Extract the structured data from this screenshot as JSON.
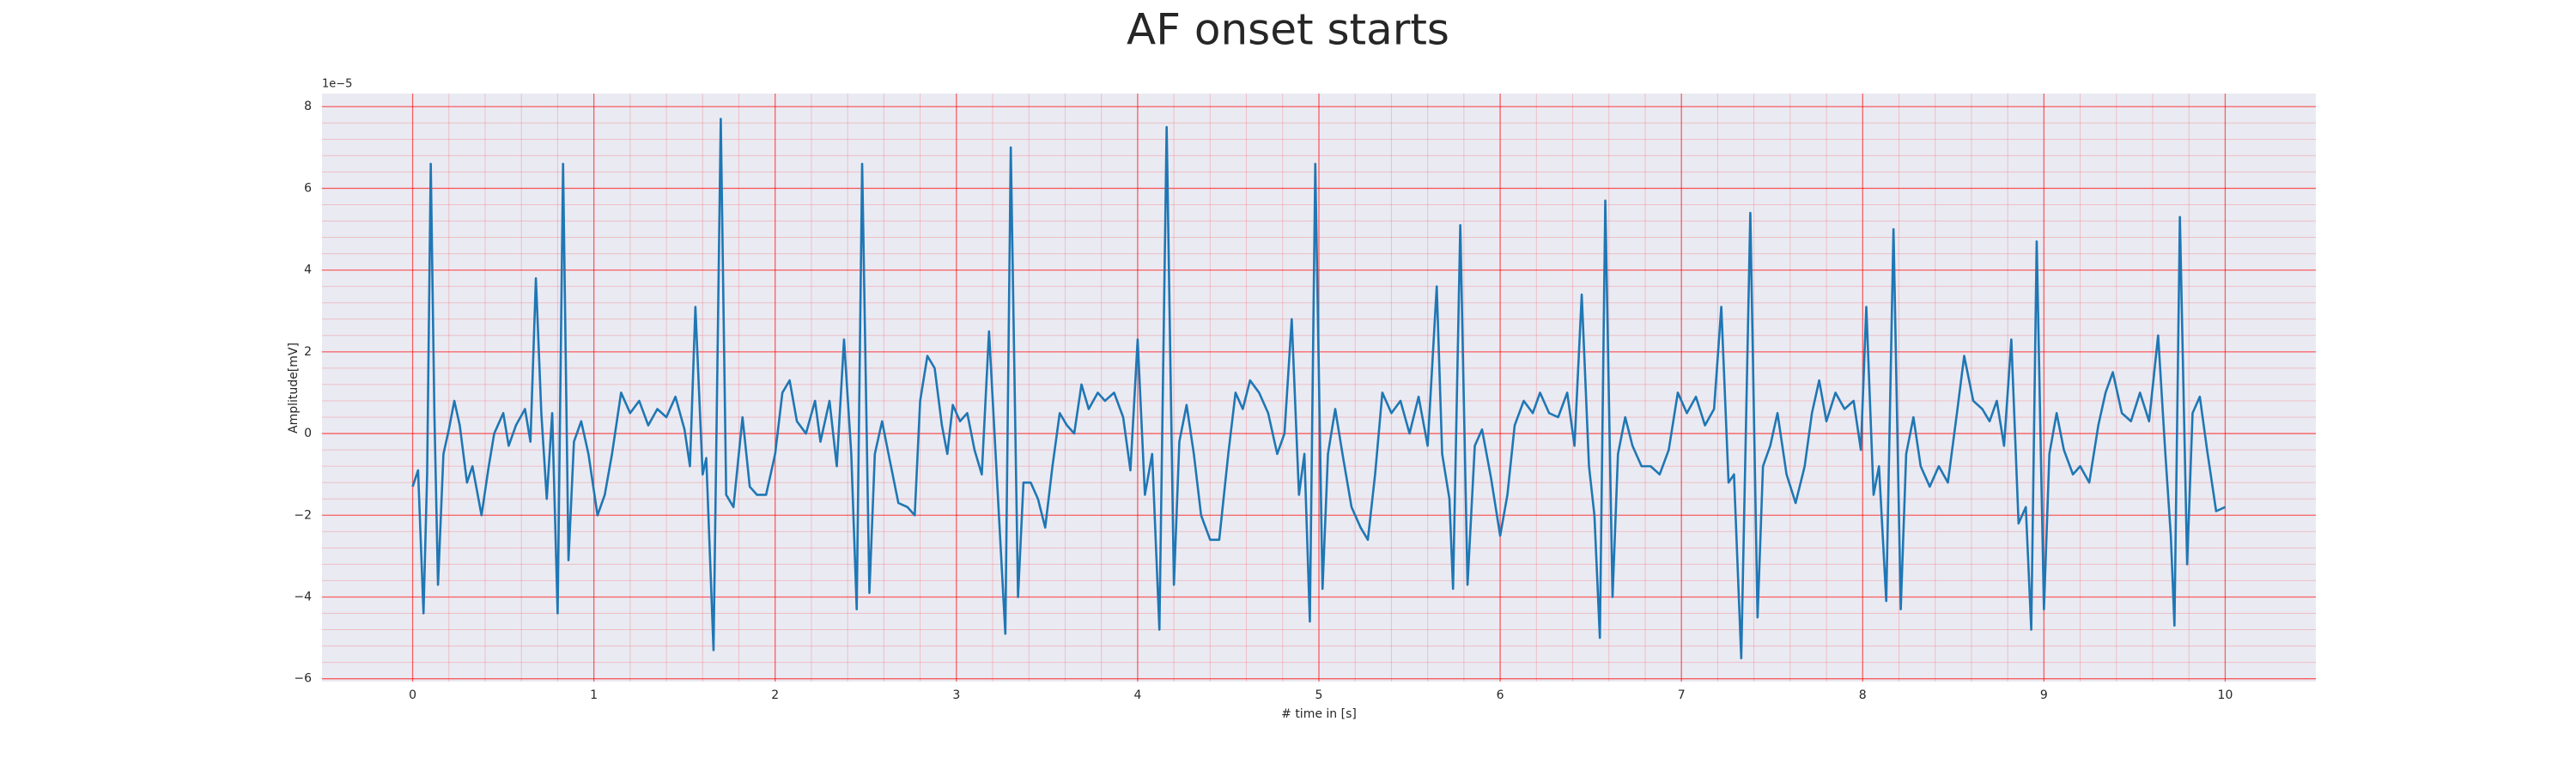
{
  "chart_data": {
    "type": "line",
    "title": "AF onset starts",
    "xlabel": "# time in [s]",
    "ylabel": "Amplitude[mV]",
    "y_offset_label": "1e−5",
    "x": [
      0.0,
      0.03,
      0.06,
      0.08,
      0.1,
      0.12,
      0.14,
      0.17,
      0.2,
      0.23,
      0.26,
      0.3,
      0.33,
      0.38,
      0.42,
      0.45,
      0.5,
      0.53,
      0.57,
      0.62,
      0.65,
      0.68,
      0.71,
      0.74,
      0.77,
      0.8,
      0.83,
      0.86,
      0.89,
      0.93,
      0.97,
      1.02,
      1.06,
      1.1,
      1.15,
      1.2,
      1.25,
      1.3,
      1.35,
      1.4,
      1.45,
      1.5,
      1.53,
      1.56,
      1.6,
      1.62,
      1.66,
      1.7,
      1.73,
      1.77,
      1.82,
      1.86,
      1.9,
      1.95,
      2.0,
      2.04,
      2.08,
      2.12,
      2.17,
      2.22,
      2.25,
      2.3,
      2.34,
      2.38,
      2.42,
      2.45,
      2.48,
      2.52,
      2.55,
      2.59,
      2.63,
      2.68,
      2.73,
      2.77,
      2.8,
      2.84,
      2.88,
      2.92,
      2.95,
      2.98,
      3.02,
      3.06,
      3.1,
      3.14,
      3.18,
      3.22,
      3.27,
      3.3,
      3.34,
      3.37,
      3.41,
      3.45,
      3.49,
      3.53,
      3.57,
      3.61,
      3.65,
      3.69,
      3.73,
      3.78,
      3.82,
      3.87,
      3.92,
      3.96,
      4.0,
      4.04,
      4.08,
      4.12,
      4.16,
      4.2,
      4.23,
      4.27,
      4.31,
      4.35,
      4.4,
      4.45,
      4.5,
      4.54,
      4.58,
      4.62,
      4.67,
      4.72,
      4.77,
      4.81,
      4.85,
      4.89,
      4.92,
      4.95,
      4.98,
      5.02,
      5.05,
      5.09,
      5.13,
      5.18,
      5.23,
      5.27,
      5.31,
      5.35,
      5.4,
      5.45,
      5.5,
      5.55,
      5.6,
      5.65,
      5.68,
      5.72,
      5.74,
      5.78,
      5.82,
      5.86,
      5.9,
      5.95,
      6.0,
      6.04,
      6.08,
      6.13,
      6.18,
      6.22,
      6.27,
      6.32,
      6.37,
      6.41,
      6.45,
      6.49,
      6.52,
      6.55,
      6.58,
      6.62,
      6.65,
      6.69,
      6.73,
      6.78,
      6.83,
      6.88,
      6.93,
      6.98,
      7.03,
      7.08,
      7.13,
      7.18,
      7.22,
      7.26,
      7.29,
      7.33,
      7.38,
      7.42,
      7.45,
      7.49,
      7.53,
      7.58,
      7.63,
      7.68,
      7.72,
      7.76,
      7.8,
      7.85,
      7.9,
      7.95,
      7.99,
      8.02,
      8.06,
      8.09,
      8.13,
      8.17,
      8.21,
      8.24,
      8.28,
      8.32,
      8.37,
      8.42,
      8.47,
      8.52,
      8.56,
      8.61,
      8.66,
      8.7,
      8.74,
      8.78,
      8.82,
      8.86,
      8.9,
      8.93,
      8.96,
      9.0,
      9.03,
      9.07,
      9.11,
      9.16,
      9.2,
      9.25,
      9.3,
      9.34,
      9.38,
      9.43,
      9.48,
      9.53,
      9.58,
      9.63,
      9.67,
      9.7,
      9.72,
      9.75,
      9.79,
      9.82,
      9.86,
      9.9,
      9.95,
      10.0
    ],
    "series": [
      {
        "color": "#1f77b4",
        "values": [
          -1.3,
          -0.9,
          -4.4,
          -1,
          6.6,
          0.5,
          -3.7,
          -0.5,
          0.1,
          0.8,
          0.2,
          -1.2,
          -0.8,
          -2.0,
          -0.8,
          0.0,
          0.5,
          -0.3,
          0.2,
          0.6,
          -0.2,
          3.8,
          0.5,
          -1.6,
          0.5,
          -4.4,
          6.6,
          -3.1,
          -0.2,
          0.3,
          -0.5,
          -2.0,
          -1.5,
          -0.5,
          1.0,
          0.5,
          0.8,
          0.2,
          0.6,
          0.4,
          0.9,
          0.1,
          -0.8,
          3.1,
          -1.0,
          -0.6,
          -5.3,
          7.7,
          -1.5,
          -1.8,
          0.4,
          -1.3,
          -1.5,
          -1.5,
          -0.5,
          1.0,
          1.3,
          0.3,
          0.0,
          0.8,
          -0.2,
          0.8,
          -0.8,
          2.3,
          -0.5,
          -4.3,
          6.6,
          -3.9,
          -0.5,
          0.3,
          -0.6,
          -1.7,
          -1.8,
          -2.0,
          0.8,
          1.9,
          1.6,
          0.2,
          -0.5,
          0.7,
          0.3,
          0.5,
          -0.4,
          -1.0,
          2.5,
          -0.8,
          -4.9,
          7.0,
          -4.0,
          -1.2,
          -1.2,
          -1.6,
          -2.3,
          -0.8,
          0.5,
          0.2,
          0.0,
          1.2,
          0.6,
          1.0,
          0.8,
          1.0,
          0.4,
          -0.9,
          2.3,
          -1.5,
          -0.5,
          -4.8,
          7.5,
          -3.7,
          -0.2,
          0.7,
          -0.5,
          -2.0,
          -2.6,
          -2.6,
          -0.5,
          1.0,
          0.6,
          1.3,
          1.0,
          0.5,
          -0.5,
          0.0,
          2.8,
          -1.5,
          -0.5,
          -4.6,
          6.6,
          -3.8,
          -0.5,
          0.6,
          -0.5,
          -1.8,
          -2.3,
          -2.6,
          -1.0,
          1.0,
          0.5,
          0.8,
          0.0,
          0.9,
          -0.3,
          3.6,
          -0.5,
          -1.6,
          -3.8,
          5.1,
          -3.7,
          -0.3,
          0.1,
          -1.1,
          -2.5,
          -1.5,
          0.2,
          0.8,
          0.5,
          1.0,
          0.5,
          0.4,
          1.0,
          -0.3,
          3.4,
          -0.8,
          -2.0,
          -5.0,
          5.7,
          -4.0,
          -0.5,
          0.4,
          -0.3,
          -0.8,
          -0.8,
          -1.0,
          -0.4,
          1.0,
          0.5,
          0.9,
          0.2,
          0.6,
          3.1,
          -1.2,
          -1.0,
          -5.5,
          5.4,
          -4.5,
          -0.8,
          -0.3,
          0.5,
          -1.0,
          -1.7,
          -0.8,
          0.5,
          1.3,
          0.3,
          1.0,
          0.6,
          0.8,
          -0.4,
          3.1,
          -1.5,
          -0.8,
          -4.1,
          5.0,
          -4.3,
          -0.5,
          0.4,
          -0.8,
          -1.3,
          -0.8,
          -1.2,
          0.5,
          1.9,
          0.8,
          0.6,
          0.3,
          0.8,
          -0.3,
          2.3,
          -2.2,
          -1.8,
          -4.8,
          4.7,
          -4.3,
          -0.5,
          0.5,
          -0.4,
          -1.0,
          -0.8,
          -1.2,
          0.2,
          1.0,
          1.5,
          0.5,
          0.3,
          1.0,
          0.3,
          2.4,
          -0.5,
          -2.5,
          -4.7,
          5.3,
          -3.2,
          0.5,
          0.9,
          -0.4,
          -1.9,
          -1.8
        ]
      }
    ],
    "xlim": [
      -0.5,
      10.5
    ],
    "xticks": [
      0,
      1,
      2,
      3,
      4,
      5,
      6,
      7,
      8,
      9,
      10
    ],
    "ylim": [
      -6.07,
      8.32
    ],
    "yticks": [
      {
        "value": -6,
        "label": "−6"
      },
      {
        "value": -4,
        "label": "−4"
      },
      {
        "value": -2,
        "label": "−2"
      },
      0,
      2,
      4,
      6,
      8
    ],
    "grid": true,
    "minor_grid": true,
    "background": "#eaeaf2",
    "grid_color": "#ff0000"
  }
}
